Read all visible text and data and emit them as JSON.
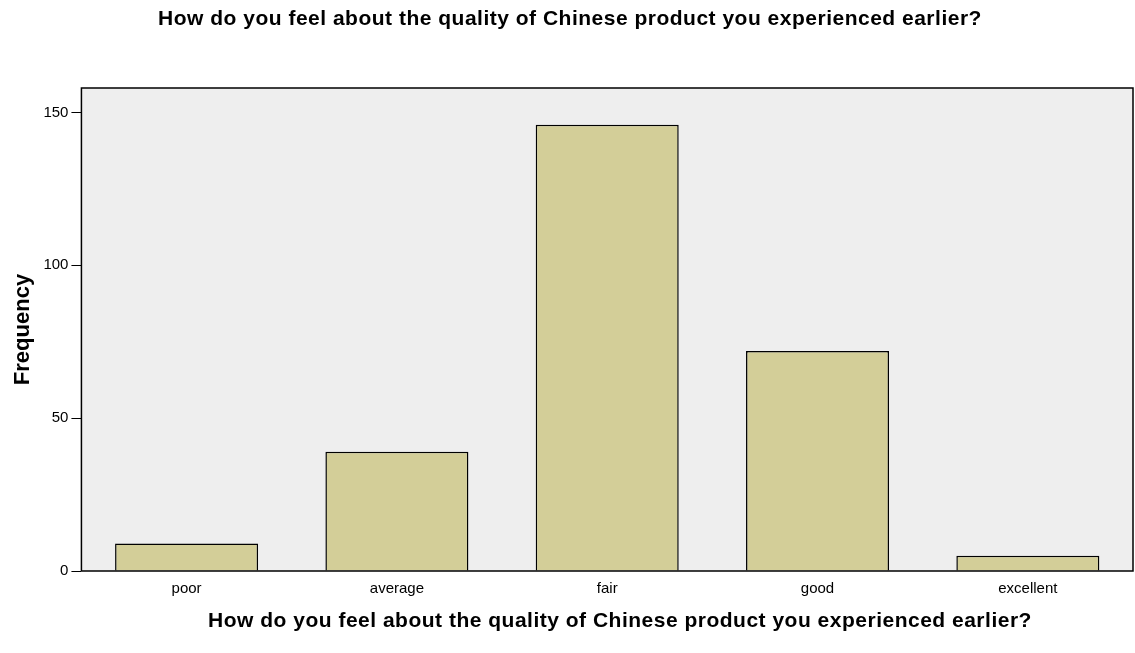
{
  "chart_data": {
    "type": "bar",
    "title": "How do you feel about the quality of Chinese product you experienced earlier?",
    "xlabel": "How do you feel about the quality of Chinese product you experienced earlier?",
    "ylabel": "Frequency",
    "categories": [
      "poor",
      "average",
      "fair",
      "good",
      "excellent"
    ],
    "values": [
      9,
      39,
      146,
      72,
      5
    ],
    "color": "#d3ce98",
    "ylim": [
      0,
      158
    ],
    "yticks": [
      0,
      50,
      100,
      150
    ],
    "grid": false,
    "legend": false
  }
}
